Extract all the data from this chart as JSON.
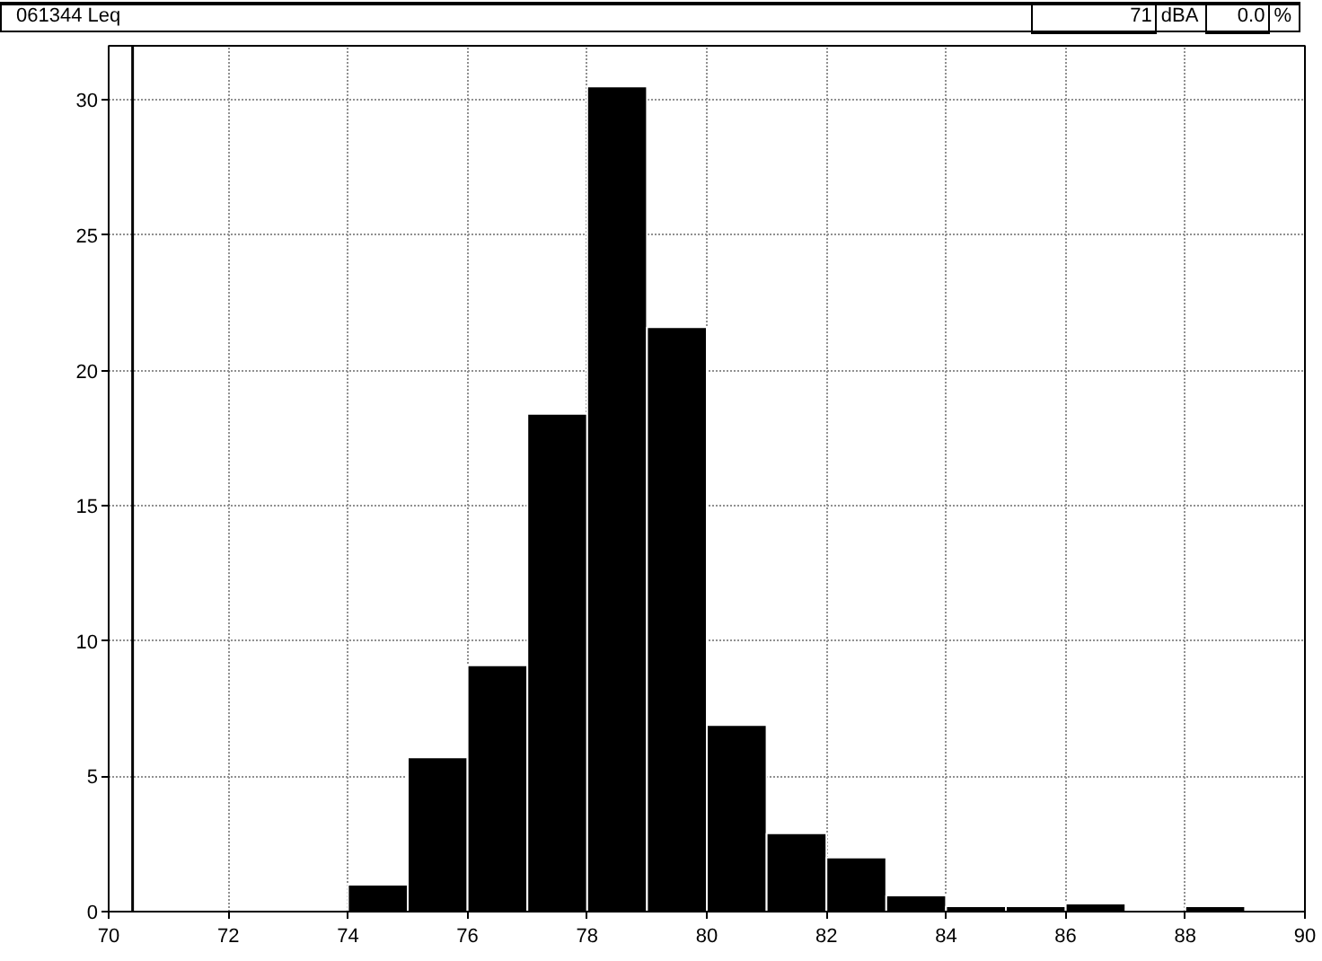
{
  "chart_data": {
    "type": "histogram",
    "title": "061344  Leq",
    "annotations": [
      "71",
      "dBA",
      "0.0",
      "%"
    ],
    "bins": [
      74,
      75,
      76,
      77,
      78,
      79,
      80,
      81,
      82,
      83,
      84,
      85,
      86,
      87,
      88,
      89,
      90
    ],
    "values": [
      1.0,
      5.7,
      9.1,
      18.4,
      30.5,
      21.6,
      6.9,
      2.9,
      2.0,
      0.6,
      0.2,
      0.2,
      0.3,
      0,
      0.2,
      0
    ],
    "color": "#000000",
    "xlim": [
      70,
      90
    ],
    "xticks": [
      70,
      72,
      74,
      76,
      78,
      80,
      82,
      84,
      86,
      88,
      90
    ],
    "ylim": [
      0,
      32
    ],
    "yticks": [
      0,
      5,
      10,
      15,
      20,
      25,
      30
    ],
    "ref_lines": [
      {
        "axis": "x",
        "value": 70.4,
        "label": null,
        "color": "#000000"
      }
    ],
    "grid": true
  }
}
